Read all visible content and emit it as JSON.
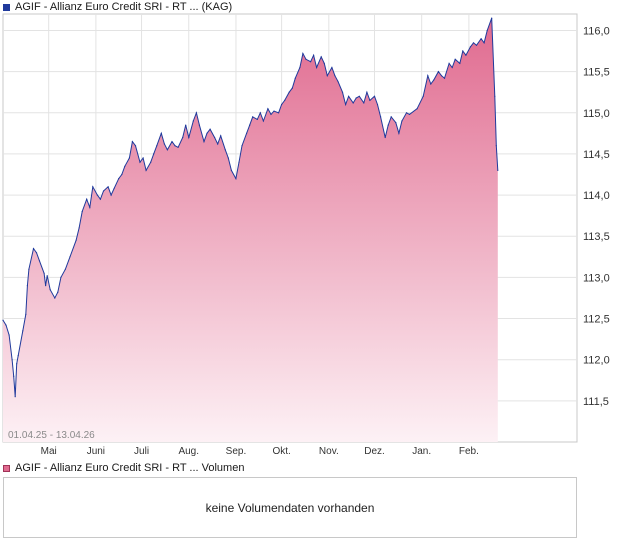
{
  "price_legend": {
    "label": "AGIF - Allianz Euro Credit SRI - RT ... (KAG)",
    "color": "#203a9c"
  },
  "volume_legend": {
    "label": "AGIF - Allianz Euro Credit SRI - RT ... Volumen",
    "color": "#e06a8f"
  },
  "date_range": "01.04.25 - 13.04.26",
  "volume_message": "keine Volumendaten vorhanden",
  "chart_data": {
    "type": "area",
    "title": "",
    "xlabel": "",
    "ylabel": "",
    "ylim": [
      111.0,
      116.2
    ],
    "x_range": [
      "2025-04-01",
      "2026-04-13"
    ],
    "grid": true,
    "legend_position": "top-left",
    "y_ticks": [
      "111,5",
      "112,0",
      "112,5",
      "113,0",
      "113,5",
      "114,0",
      "114,5",
      "115,0",
      "115,5",
      "116,0"
    ],
    "x_ticks": [
      {
        "label": "Mai",
        "date": "2025-05-01"
      },
      {
        "label": "Juni",
        "date": "2025-06-01"
      },
      {
        "label": "Juli",
        "date": "2025-07-01"
      },
      {
        "label": "Aug.",
        "date": "2025-08-01"
      },
      {
        "label": "Sep.",
        "date": "2025-09-01"
      },
      {
        "label": "Okt.",
        "date": "2025-10-01"
      },
      {
        "label": "Nov.",
        "date": "2025-11-01"
      },
      {
        "label": "Dez.",
        "date": "2025-12-01"
      },
      {
        "label": "Jan.",
        "date": "2026-01-01"
      },
      {
        "label": "Feb.",
        "date": "2026-02-01"
      }
    ],
    "series": [
      {
        "line_color": "#203a9c",
        "fill_top": "#e06a8f",
        "fill_bottom": "#fdf1f5",
        "points": [
          [
            "2025-04-01",
            112.48
          ],
          [
            "2025-04-03",
            112.42
          ],
          [
            "2025-04-05",
            112.3
          ],
          [
            "2025-04-07",
            112.0
          ],
          [
            "2025-04-08",
            111.8
          ],
          [
            "2025-04-09",
            111.55
          ],
          [
            "2025-04-10",
            111.95
          ],
          [
            "2025-04-11",
            112.05
          ],
          [
            "2025-04-14",
            112.35
          ],
          [
            "2025-04-16",
            112.55
          ],
          [
            "2025-04-17",
            112.9
          ],
          [
            "2025-04-18",
            113.1
          ],
          [
            "2025-04-21",
            113.35
          ],
          [
            "2025-04-23",
            113.3
          ],
          [
            "2025-04-25",
            113.2
          ],
          [
            "2025-04-28",
            113.05
          ],
          [
            "2025-04-29",
            112.9
          ],
          [
            "2025-04-30",
            113.02
          ],
          [
            "2025-05-02",
            112.85
          ],
          [
            "2025-05-05",
            112.75
          ],
          [
            "2025-05-07",
            112.82
          ],
          [
            "2025-05-09",
            113.0
          ],
          [
            "2025-05-12",
            113.1
          ],
          [
            "2025-05-15",
            113.25
          ],
          [
            "2025-05-19",
            113.45
          ],
          [
            "2025-05-21",
            113.6
          ],
          [
            "2025-05-23",
            113.8
          ],
          [
            "2025-05-26",
            113.95
          ],
          [
            "2025-05-28",
            113.85
          ],
          [
            "2025-05-30",
            114.1
          ],
          [
            "2025-06-02",
            114.0
          ],
          [
            "2025-06-04",
            113.95
          ],
          [
            "2025-06-06",
            114.05
          ],
          [
            "2025-06-09",
            114.1
          ],
          [
            "2025-06-11",
            114.0
          ],
          [
            "2025-06-13",
            114.08
          ],
          [
            "2025-06-16",
            114.2
          ],
          [
            "2025-06-18",
            114.25
          ],
          [
            "2025-06-20",
            114.35
          ],
          [
            "2025-06-23",
            114.45
          ],
          [
            "2025-06-25",
            114.65
          ],
          [
            "2025-06-27",
            114.6
          ],
          [
            "2025-06-30",
            114.4
          ],
          [
            "2025-07-02",
            114.45
          ],
          [
            "2025-07-04",
            114.3
          ],
          [
            "2025-07-07",
            114.4
          ],
          [
            "2025-07-09",
            114.5
          ],
          [
            "2025-07-11",
            114.6
          ],
          [
            "2025-07-14",
            114.75
          ],
          [
            "2025-07-16",
            114.62
          ],
          [
            "2025-07-18",
            114.55
          ],
          [
            "2025-07-21",
            114.65
          ],
          [
            "2025-07-23",
            114.6
          ],
          [
            "2025-07-25",
            114.58
          ],
          [
            "2025-07-28",
            114.7
          ],
          [
            "2025-07-30",
            114.85
          ],
          [
            "2025-08-01",
            114.7
          ],
          [
            "2025-08-04",
            114.9
          ],
          [
            "2025-08-06",
            115.0
          ],
          [
            "2025-08-08",
            114.85
          ],
          [
            "2025-08-11",
            114.65
          ],
          [
            "2025-08-13",
            114.75
          ],
          [
            "2025-08-15",
            114.8
          ],
          [
            "2025-08-18",
            114.7
          ],
          [
            "2025-08-20",
            114.62
          ],
          [
            "2025-08-22",
            114.72
          ],
          [
            "2025-08-25",
            114.55
          ],
          [
            "2025-08-27",
            114.45
          ],
          [
            "2025-08-29",
            114.3
          ],
          [
            "2025-09-01",
            114.2
          ],
          [
            "2025-09-03",
            114.4
          ],
          [
            "2025-09-05",
            114.6
          ],
          [
            "2025-09-08",
            114.75
          ],
          [
            "2025-09-10",
            114.85
          ],
          [
            "2025-09-12",
            114.95
          ],
          [
            "2025-09-15",
            114.92
          ],
          [
            "2025-09-17",
            115.0
          ],
          [
            "2025-09-19",
            114.9
          ],
          [
            "2025-09-22",
            115.05
          ],
          [
            "2025-09-24",
            114.98
          ],
          [
            "2025-09-26",
            115.02
          ],
          [
            "2025-09-29",
            115.0
          ],
          [
            "2025-10-01",
            115.1
          ],
          [
            "2025-10-03",
            115.15
          ],
          [
            "2025-10-06",
            115.25
          ],
          [
            "2025-10-08",
            115.3
          ],
          [
            "2025-10-10",
            115.42
          ],
          [
            "2025-10-13",
            115.55
          ],
          [
            "2025-10-15",
            115.72
          ],
          [
            "2025-10-17",
            115.65
          ],
          [
            "2025-10-20",
            115.62
          ],
          [
            "2025-10-22",
            115.7
          ],
          [
            "2025-10-24",
            115.55
          ],
          [
            "2025-10-27",
            115.68
          ],
          [
            "2025-10-29",
            115.6
          ],
          [
            "2025-10-31",
            115.45
          ],
          [
            "2025-11-03",
            115.55
          ],
          [
            "2025-11-05",
            115.45
          ],
          [
            "2025-11-07",
            115.38
          ],
          [
            "2025-11-10",
            115.25
          ],
          [
            "2025-11-12",
            115.1
          ],
          [
            "2025-11-14",
            115.2
          ],
          [
            "2025-11-17",
            115.12
          ],
          [
            "2025-11-19",
            115.18
          ],
          [
            "2025-11-21",
            115.2
          ],
          [
            "2025-11-24",
            115.12
          ],
          [
            "2025-11-26",
            115.25
          ],
          [
            "2025-11-28",
            115.15
          ],
          [
            "2025-12-01",
            115.2
          ],
          [
            "2025-12-03",
            115.1
          ],
          [
            "2025-12-05",
            114.95
          ],
          [
            "2025-12-08",
            114.7
          ],
          [
            "2025-12-10",
            114.85
          ],
          [
            "2025-12-12",
            114.95
          ],
          [
            "2025-12-15",
            114.88
          ],
          [
            "2025-12-17",
            114.75
          ],
          [
            "2025-12-19",
            114.9
          ],
          [
            "2025-12-22",
            115.0
          ],
          [
            "2025-12-24",
            114.98
          ],
          [
            "2025-12-29",
            115.05
          ],
          [
            "2026-01-02",
            115.2
          ],
          [
            "2026-01-05",
            115.45
          ],
          [
            "2026-01-07",
            115.35
          ],
          [
            "2026-01-09",
            115.4
          ],
          [
            "2026-01-12",
            115.5
          ],
          [
            "2026-01-14",
            115.45
          ],
          [
            "2026-01-16",
            115.42
          ],
          [
            "2026-01-19",
            115.6
          ],
          [
            "2026-01-21",
            115.55
          ],
          [
            "2026-01-23",
            115.65
          ],
          [
            "2026-01-26",
            115.6
          ],
          [
            "2026-01-28",
            115.75
          ],
          [
            "2026-01-30",
            115.7
          ],
          [
            "2026-02-02",
            115.8
          ],
          [
            "2026-02-04",
            115.85
          ],
          [
            "2026-02-06",
            115.82
          ],
          [
            "2026-02-09",
            115.9
          ],
          [
            "2026-02-11",
            115.85
          ],
          [
            "2026-02-13",
            116.0
          ],
          [
            "2026-02-16",
            116.15
          ],
          [
            "2026-02-18",
            115.2
          ],
          [
            "2026-02-19",
            114.6
          ],
          [
            "2026-02-20",
            114.3
          ]
        ]
      }
    ]
  }
}
